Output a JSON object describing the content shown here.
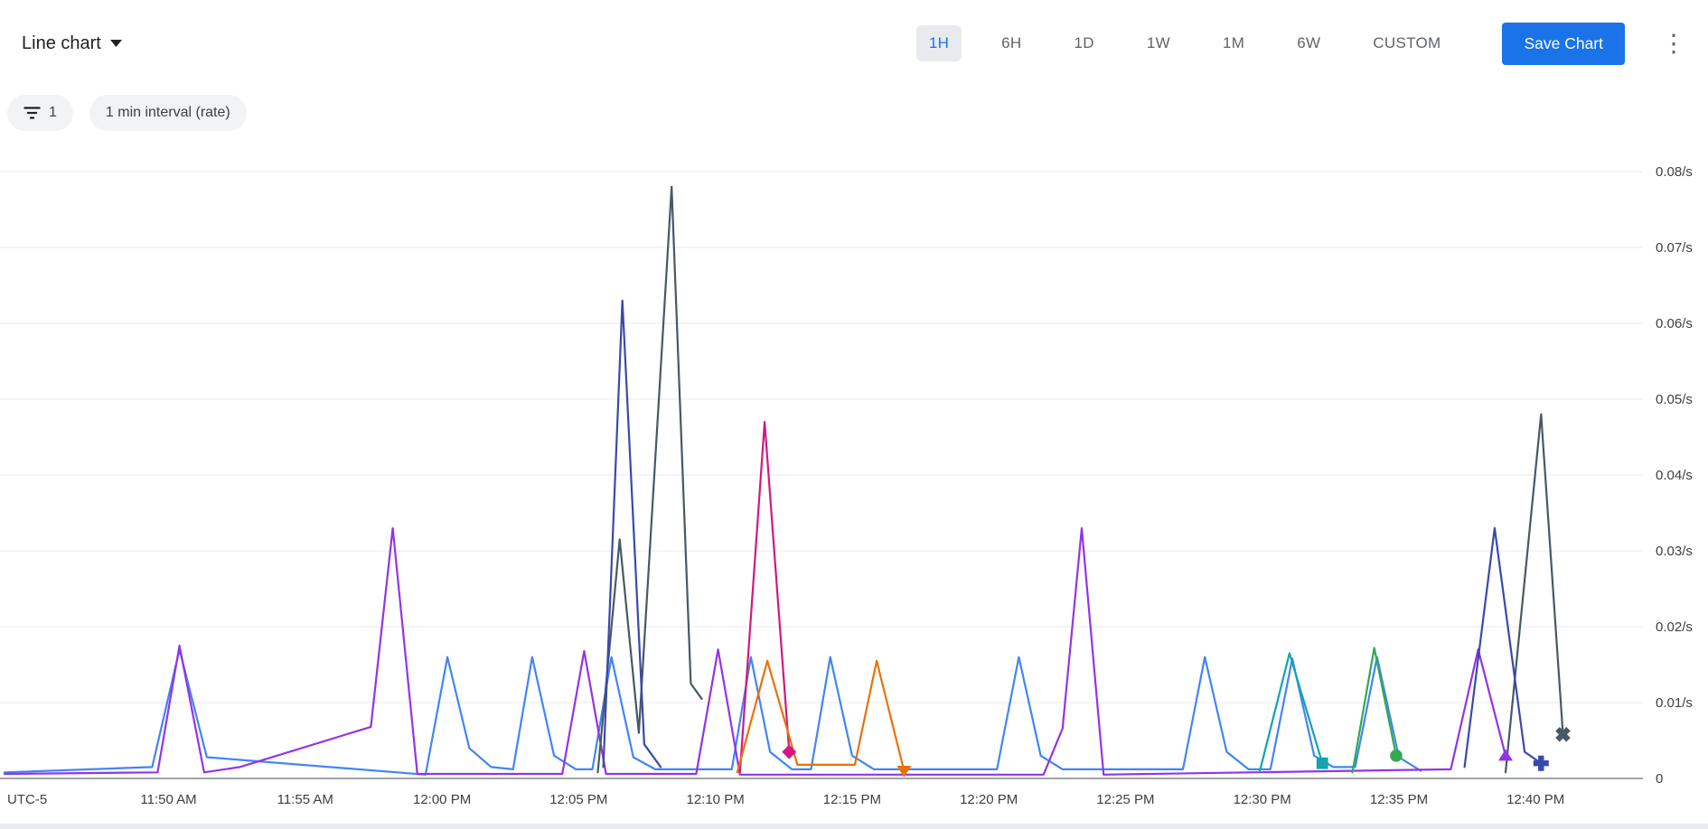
{
  "toolbar": {
    "chart_type_label": "Line chart",
    "time_ranges": [
      "1H",
      "6H",
      "1D",
      "1W",
      "1M",
      "6W",
      "CUSTOM"
    ],
    "selected_range": "1H",
    "save_button_label": "Save Chart"
  },
  "filter_bar": {
    "filter_chip_count": "1",
    "interval_chip_label": "1 min interval (rate)"
  },
  "colors": {
    "accent_blue": "#1a73e8",
    "selected_pill_bg": "#e8eaed",
    "chip_bg": "#f1f3f4",
    "gridline": "#e8eaed",
    "axis_line": "#80868b",
    "text_primary": "#202124",
    "text_secondary": "#5f6368"
  },
  "chart_data": {
    "type": "line",
    "unit": "/s",
    "grid": "horizontal",
    "legend_position": "none",
    "timezone_label": "UTC-5",
    "x_domain_minutes": [
      0,
      59
    ],
    "x_ticks": [
      {
        "label": "11:50 AM",
        "t": 6
      },
      {
        "label": "11:55 AM",
        "t": 11
      },
      {
        "label": "12:00 PM",
        "t": 16
      },
      {
        "label": "12:05 PM",
        "t": 21
      },
      {
        "label": "12:10 PM",
        "t": 26
      },
      {
        "label": "12:15 PM",
        "t": 31
      },
      {
        "label": "12:20 PM",
        "t": 36
      },
      {
        "label": "12:25 PM",
        "t": 41
      },
      {
        "label": "12:30 PM",
        "t": 46
      },
      {
        "label": "12:35 PM",
        "t": 51
      },
      {
        "label": "12:40 PM",
        "t": 56
      }
    ],
    "ylim": [
      0,
      0.08
    ],
    "y_ticks": [
      {
        "label": "0.08/s",
        "value": 0.08
      },
      {
        "label": "0.07/s",
        "value": 0.07
      },
      {
        "label": "0.06/s",
        "value": 0.06
      },
      {
        "label": "0.05/s",
        "value": 0.05
      },
      {
        "label": "0.04/s",
        "value": 0.04
      },
      {
        "label": "0.03/s",
        "value": 0.03
      },
      {
        "label": "0.02/s",
        "value": 0.02
      },
      {
        "label": "0.01/s",
        "value": 0.01
      },
      {
        "label": "0",
        "value": 0
      }
    ],
    "grid_values": [
      0.01,
      0.02,
      0.03,
      0.04,
      0.05,
      0.06,
      0.07,
      0.08
    ],
    "series": [
      {
        "name": "series-blue",
        "color": "#4285F4",
        "segments": [
          [
            [
              0,
              0.0008
            ],
            [
              5.4,
              0.0015
            ],
            [
              6.4,
              0.017
            ],
            [
              7.4,
              0.0028
            ],
            [
              15.4,
              0.0005
            ],
            [
              16.2,
              0.016
            ],
            [
              17.0,
              0.004
            ],
            [
              17.8,
              0.0015
            ],
            [
              18.6,
              0.0012
            ],
            [
              19.3,
              0.016
            ],
            [
              20.1,
              0.003
            ],
            [
              20.9,
              0.0012
            ],
            [
              21.5,
              0.0012
            ],
            [
              22.2,
              0.016
            ],
            [
              23.0,
              0.0028
            ],
            [
              23.8,
              0.0012
            ],
            [
              26.6,
              0.0012
            ],
            [
              27.3,
              0.016
            ],
            [
              28.0,
              0.0035
            ],
            [
              28.8,
              0.0012
            ],
            [
              29.5,
              0.0012
            ],
            [
              30.2,
              0.016
            ],
            [
              31.0,
              0.003
            ],
            [
              31.8,
              0.0012
            ],
            [
              36.3,
              0.0012
            ],
            [
              37.1,
              0.016
            ],
            [
              37.9,
              0.003
            ],
            [
              38.7,
              0.0012
            ],
            [
              43.1,
              0.0012
            ],
            [
              43.9,
              0.016
            ],
            [
              44.7,
              0.0035
            ],
            [
              45.5,
              0.0012
            ],
            [
              46.3,
              0.0012
            ],
            [
              47.1,
              0.0158
            ],
            [
              47.9,
              0.003
            ],
            [
              48.6,
              0.0015
            ],
            [
              49.4,
              0.0015
            ],
            [
              50.2,
              0.016
            ],
            [
              51.0,
              0.0028
            ],
            [
              51.8,
              0.001
            ]
          ]
        ]
      },
      {
        "name": "series-purple",
        "color": "#9334E6",
        "segments": [
          [
            [
              0,
              0.0006
            ],
            [
              5.6,
              0.0008
            ],
            [
              6.4,
              0.0175
            ],
            [
              7.3,
              0.0008
            ],
            [
              8.6,
              0.0015
            ],
            [
              13.4,
              0.0068
            ],
            [
              14.2,
              0.033
            ],
            [
              15.1,
              0.0006
            ],
            [
              20.4,
              0.0006
            ],
            [
              21.2,
              0.0168
            ],
            [
              22.0,
              0.0006
            ],
            [
              25.3,
              0.0006
            ],
            [
              26.1,
              0.017
            ],
            [
              26.9,
              0.0005
            ],
            [
              38.0,
              0.0005
            ],
            [
              38.7,
              0.0066
            ],
            [
              39.4,
              0.033
            ],
            [
              40.2,
              0.0005
            ],
            [
              52.9,
              0.0012
            ],
            [
              53.9,
              0.017
            ],
            [
              54.9,
              0.003
            ]
          ]
        ],
        "end_marker": {
          "shape": "triangle-up",
          "t": 54.9,
          "v": 0.003
        }
      },
      {
        "name": "series-slate",
        "color": "#455A64",
        "segments": [
          [
            [
              21.7,
              0.0008
            ],
            [
              22.5,
              0.0315
            ],
            [
              23.2,
              0.006
            ],
            [
              24.4,
              0.078
            ],
            [
              25.1,
              0.0125
            ],
            [
              25.5,
              0.0105
            ]
          ],
          [
            [
              54.9,
              0.0008
            ],
            [
              56.2,
              0.048
            ],
            [
              57.0,
              0.0058
            ]
          ]
        ],
        "end_marker": {
          "shape": "x",
          "t": 57.0,
          "v": 0.0058
        }
      },
      {
        "name": "series-navy",
        "color": "#3949AB",
        "segments": [
          [
            [
              21.9,
              0.0015
            ],
            [
              22.6,
              0.063
            ],
            [
              23.4,
              0.0045
            ],
            [
              24.0,
              0.0015
            ]
          ],
          [
            [
              53.4,
              0.0015
            ],
            [
              54.5,
              0.033
            ],
            [
              55.6,
              0.0035
            ],
            [
              56.2,
              0.002
            ]
          ]
        ],
        "end_marker": {
          "shape": "plus",
          "t": 56.2,
          "v": 0.002
        }
      },
      {
        "name": "series-pink",
        "color": "#D01884",
        "segments": [
          [
            [
              26.9,
              0.0008
            ],
            [
              27.8,
              0.047
            ],
            [
              28.7,
              0.0035
            ]
          ]
        ],
        "end_marker": {
          "shape": "diamond",
          "t": 28.7,
          "v": 0.0035
        }
      },
      {
        "name": "series-orange",
        "color": "#E8710A",
        "segments": [
          [
            [
              26.8,
              0.0008
            ],
            [
              27.9,
              0.0155
            ],
            [
              29.0,
              0.0018
            ],
            [
              31.1,
              0.0018
            ],
            [
              31.9,
              0.0155
            ],
            [
              32.9,
              0.001
            ]
          ]
        ],
        "end_marker": {
          "shape": "triangle-down",
          "t": 32.9,
          "v": 0.001
        }
      },
      {
        "name": "series-teal",
        "color": "#12A4AF",
        "segments": [
          [
            [
              45.9,
              0.0008
            ],
            [
              47.0,
              0.0165
            ],
            [
              48.2,
              0.002
            ]
          ]
        ],
        "end_marker": {
          "shape": "square",
          "t": 48.2,
          "v": 0.002
        }
      },
      {
        "name": "series-green",
        "color": "#34A853",
        "segments": [
          [
            [
              49.3,
              0.0008
            ],
            [
              50.1,
              0.0172
            ],
            [
              50.9,
              0.003
            ]
          ]
        ],
        "end_marker": {
          "shape": "circle",
          "t": 50.9,
          "v": 0.003
        }
      }
    ]
  }
}
